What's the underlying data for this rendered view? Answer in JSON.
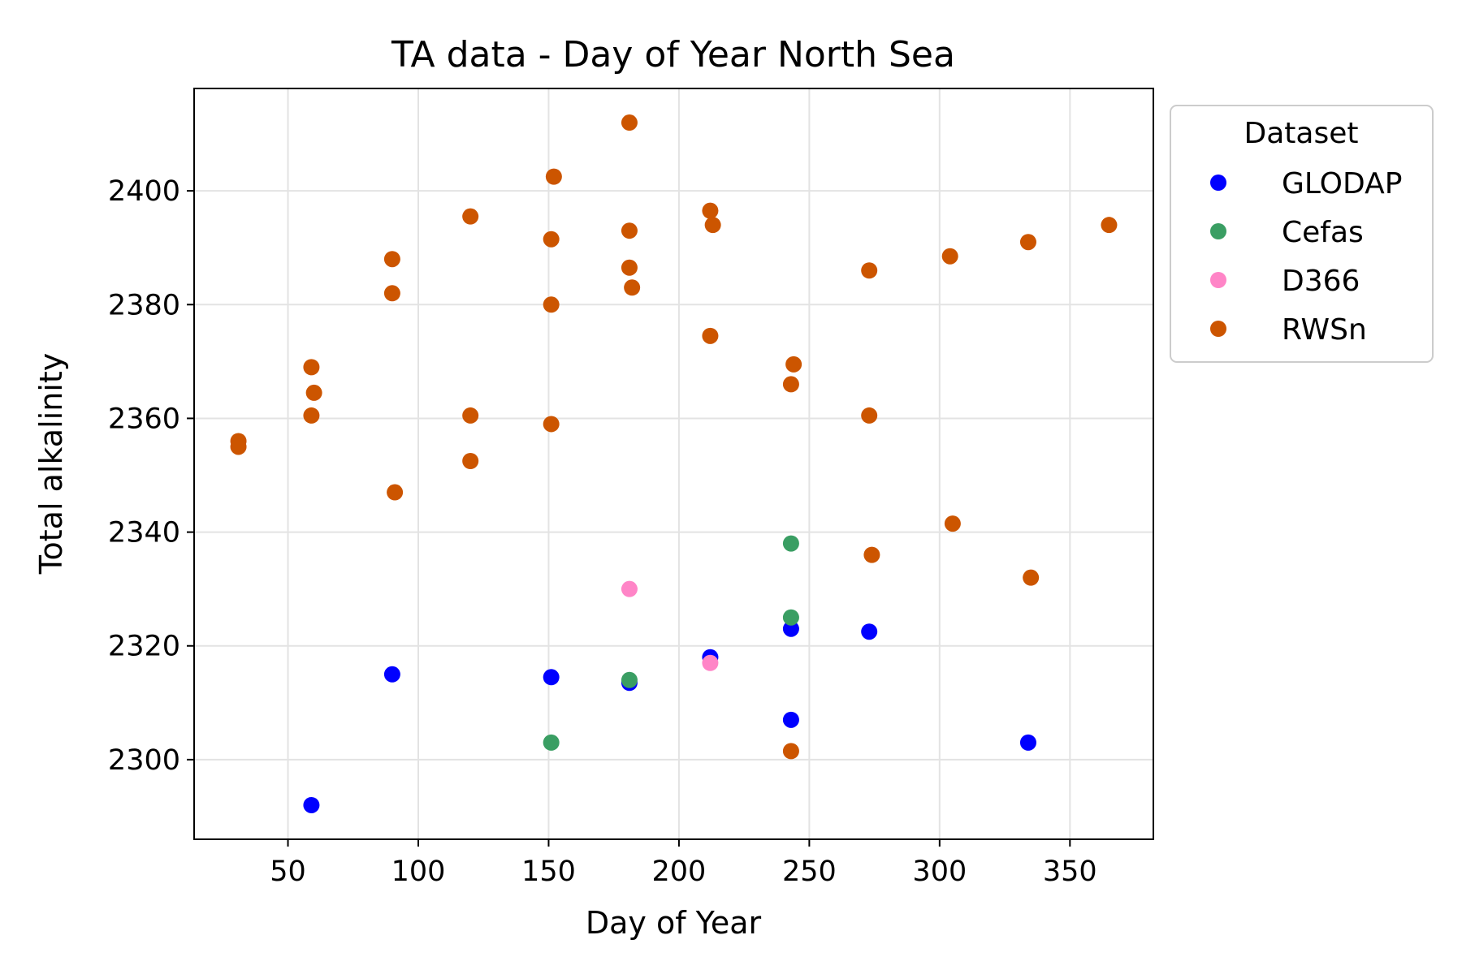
{
  "chart_data": {
    "type": "scatter",
    "title": "TA data - Day of Year North Sea",
    "xlabel": "Day of Year",
    "ylabel": "Total alkalinity",
    "xlim": [
      14,
      382
    ],
    "ylim": [
      2286,
      2418
    ],
    "xticks": [
      50,
      100,
      150,
      200,
      250,
      300,
      350
    ],
    "yticks": [
      2300,
      2320,
      2340,
      2360,
      2380,
      2400
    ],
    "grid": true,
    "legend": {
      "title": "Dataset",
      "placement": "outside upper right"
    },
    "series": [
      {
        "name": "GLODAP",
        "color": "#0000ff",
        "points": [
          [
            59,
            2292
          ],
          [
            90,
            2315
          ],
          [
            151,
            2314.5
          ],
          [
            181,
            2313.5
          ],
          [
            212,
            2318
          ],
          [
            243,
            2323
          ],
          [
            243,
            2307
          ],
          [
            273,
            2322.5
          ],
          [
            334,
            2303
          ]
        ]
      },
      {
        "name": "Cefas",
        "color": "#3a9e63",
        "points": [
          [
            151,
            2303
          ],
          [
            181,
            2314
          ],
          [
            243,
            2338
          ],
          [
            243,
            2325
          ]
        ]
      },
      {
        "name": "D366",
        "color": "#ff85c7",
        "points": [
          [
            181,
            2330
          ],
          [
            212,
            2317
          ]
        ]
      },
      {
        "name": "RWSn",
        "color": "#cc5500",
        "points": [
          [
            31,
            2356
          ],
          [
            31,
            2355
          ],
          [
            59,
            2369
          ],
          [
            60,
            2364.5
          ],
          [
            59,
            2360.5
          ],
          [
            90,
            2388
          ],
          [
            90,
            2382
          ],
          [
            91,
            2347
          ],
          [
            120,
            2395.5
          ],
          [
            120,
            2360.5
          ],
          [
            120,
            2352.5
          ],
          [
            152,
            2402.5
          ],
          [
            151,
            2391.5
          ],
          [
            151,
            2380
          ],
          [
            151,
            2359
          ],
          [
            181,
            2412
          ],
          [
            181,
            2393
          ],
          [
            181,
            2386.5
          ],
          [
            182,
            2383
          ],
          [
            212,
            2396.5
          ],
          [
            213,
            2394
          ],
          [
            212,
            2374.5
          ],
          [
            244,
            2369.5
          ],
          [
            243,
            2366
          ],
          [
            243,
            2301.5
          ],
          [
            273,
            2386
          ],
          [
            273,
            2360.5
          ],
          [
            274,
            2336
          ],
          [
            304,
            2388.5
          ],
          [
            305,
            2341.5
          ],
          [
            334,
            2391
          ],
          [
            335,
            2332
          ],
          [
            365,
            2394
          ]
        ]
      }
    ]
  }
}
